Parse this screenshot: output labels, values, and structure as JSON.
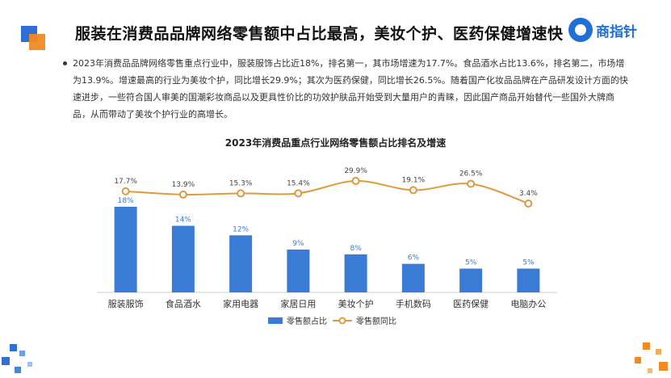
{
  "title": "服装在消费品品牌网络零售额中占比最高，美妆个护、医药保健增速快",
  "logo": {
    "text": "商指针"
  },
  "paragraph": "2023年消费品品牌网络零售重点行业中，服装服饰占比近18%，排名第一，其市场增速为17.7%。食品酒水占比13.6%，排名第二，市场增为13.9%。增速最高的行业为美妆个护，同比增长29.9%；其次为医药保健，同比增长26.5%。随着国产化妆品品牌在产品研发设计方面的快速进步，一些符合国人审美的国潮彩妆商品以及更具性价比的功效护肤品开始受到大量用户的青睐，因此国产商品开始替代一些国外大牌商品，从而带动了美妆个护行业的高增长。",
  "colors": {
    "bar": "#3a7bd5",
    "line": "#e09a3e",
    "accent_orange": "#f08a24",
    "accent_blue": "#2f6fd6"
  },
  "chart_data": {
    "type": "bar",
    "title": "2023年消费品重点行业网络零售额占比排名及增速",
    "categories": [
      "服装服饰",
      "食品酒水",
      "家用电器",
      "家居日用",
      "美妆个护",
      "手机数码",
      "医药保健",
      "电脑办公"
    ],
    "series": [
      {
        "name": "零售额占比",
        "type": "bar",
        "values": [
          18,
          14,
          12,
          9,
          8,
          6,
          5,
          5
        ],
        "labels": [
          "18%",
          "14%",
          "12%",
          "9%",
          "8%",
          "6%",
          "5%",
          "5%"
        ]
      },
      {
        "name": "零售额同比",
        "type": "line",
        "values": [
          17.7,
          13.9,
          15.3,
          15.4,
          29.9,
          19.1,
          26.5,
          3.4
        ],
        "labels": [
          "17.7%",
          "13.9%",
          "15.3%",
          "15.4%",
          "29.9%",
          "19.1%",
          "26.5%",
          "3.4%"
        ]
      }
    ],
    "legend": "bottom",
    "grid": false
  }
}
